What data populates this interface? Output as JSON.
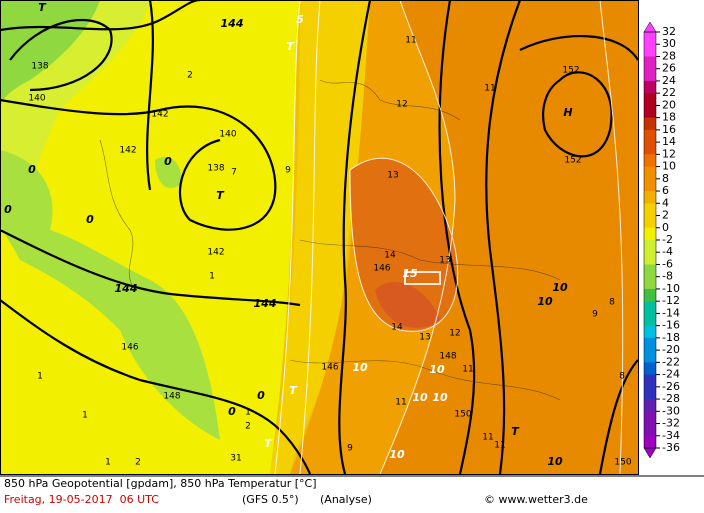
{
  "map": {
    "labels": [
      "T",
      "144",
      "5",
      "T",
      "11",
      "152",
      "11",
      "H",
      "12",
      "138",
      "140",
      "142",
      "142",
      "140",
      "138",
      "7",
      "T",
      "9",
      "0",
      "0",
      "0",
      "0",
      "2",
      "13",
      "152",
      "142",
      "14",
      "146",
      "15",
      "13",
      "144",
      "144",
      "1",
      "10",
      "10",
      "9",
      "8",
      "14",
      "13",
      "12",
      "146",
      "146",
      "10",
      "148",
      "11",
      "10",
      "1",
      "148",
      "0",
      "0",
      "1",
      "2",
      "T",
      "11",
      "10",
      "10",
      "150",
      "1",
      "11",
      "11",
      "T",
      "T",
      "9",
      "31",
      "10",
      "10",
      "150",
      "8",
      "1",
      "2"
    ]
  },
  "colorbar": {
    "labels": [
      32,
      30,
      28,
      26,
      24,
      22,
      20,
      18,
      16,
      14,
      12,
      10,
      8,
      6,
      4,
      2,
      0,
      -2,
      -4,
      -6,
      -8,
      -10,
      -12,
      -14,
      -16,
      -18,
      -20,
      -22,
      -24,
      -26,
      -28,
      -30,
      -32,
      -34,
      -36
    ]
  },
  "footer": {
    "title": "850 hPa Geopotential [gpdam], 850 hPa Temperatur [°C]",
    "date": "Freitag, 19-05-2017  06 UTC",
    "model": "(GFS 0.5°)",
    "run": "(Analyse)",
    "copyright": "© www.wetter3.de"
  }
}
